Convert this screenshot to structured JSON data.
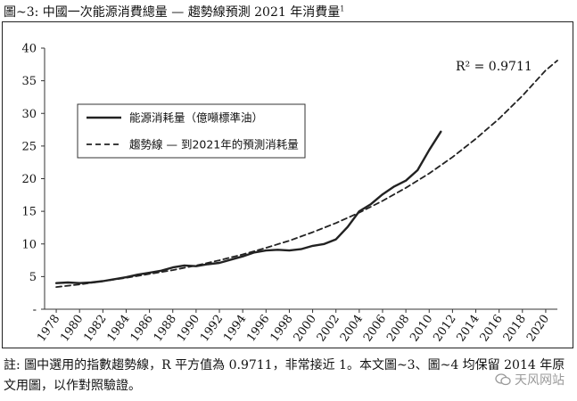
{
  "title": {
    "text": "圖~3: 中國一次能源消費總量 — 趨勢線預測 2021 年消費量",
    "footnote_mark": "1"
  },
  "note": "註: 圖中選用的指數趨勢線，R 平方值為 0.9711，非常接近 1。本文圖~3、圖~4 均保留 2014 年原文用圖，以作對照驗證。",
  "watermark": "天风网站",
  "chart_data": {
    "type": "line",
    "xlim": [
      1977,
      2021
    ],
    "ylim": [
      0,
      40
    ],
    "ytick_labels": [
      "-",
      "5",
      "10",
      "15",
      "20",
      "25",
      "30",
      "35",
      "40"
    ],
    "yticks": [
      0,
      5,
      10,
      15,
      20,
      25,
      30,
      35,
      40
    ],
    "xticks": [
      1978,
      1980,
      1982,
      1984,
      1986,
      1988,
      1990,
      1992,
      1994,
      1996,
      1998,
      2000,
      2002,
      2004,
      2006,
      2008,
      2010,
      2012,
      2014,
      2016,
      2018,
      2020
    ],
    "annotation": "R² = 0.9711",
    "grid": false,
    "legend_position": "left-middle",
    "series": [
      {
        "name": "能源消耗量（億噸標準油）",
        "style": "solid",
        "color": "#222222",
        "x": [
          1978,
          1979,
          1980,
          1981,
          1982,
          1983,
          1984,
          1985,
          1986,
          1987,
          1988,
          1989,
          1990,
          1991,
          1992,
          1993,
          1994,
          1995,
          1996,
          1997,
          1998,
          1999,
          2000,
          2001,
          2002,
          2003,
          2004,
          2005,
          2006,
          2007,
          2008,
          2009,
          2010,
          2011
        ],
        "y": [
          4.0,
          4.1,
          4.0,
          4.1,
          4.3,
          4.6,
          4.9,
          5.3,
          5.6,
          5.9,
          6.4,
          6.7,
          6.6,
          6.9,
          7.1,
          7.6,
          8.1,
          8.7,
          9.0,
          9.1,
          9.0,
          9.2,
          9.7,
          10.0,
          10.7,
          12.6,
          15.0,
          16.1,
          17.6,
          18.8,
          19.7,
          21.3,
          24.4,
          27.2
        ]
      },
      {
        "name": "趨勢線 — 到2021年的預測消耗量",
        "style": "dashed",
        "color": "#222222",
        "x": [
          1978,
          1980,
          1982,
          1984,
          1986,
          1988,
          1990,
          1992,
          1994,
          1996,
          1998,
          2000,
          2002,
          2004,
          2006,
          2008,
          2010,
          2012,
          2014,
          2016,
          2018,
          2020,
          2021
        ],
        "y": [
          3.4,
          3.8,
          4.3,
          4.8,
          5.4,
          6.0,
          6.7,
          7.5,
          8.4,
          9.4,
          10.5,
          11.8,
          13.2,
          14.8,
          16.6,
          18.6,
          20.8,
          23.3,
          26.1,
          29.2,
          32.7,
          36.6,
          38.1
        ]
      }
    ]
  }
}
